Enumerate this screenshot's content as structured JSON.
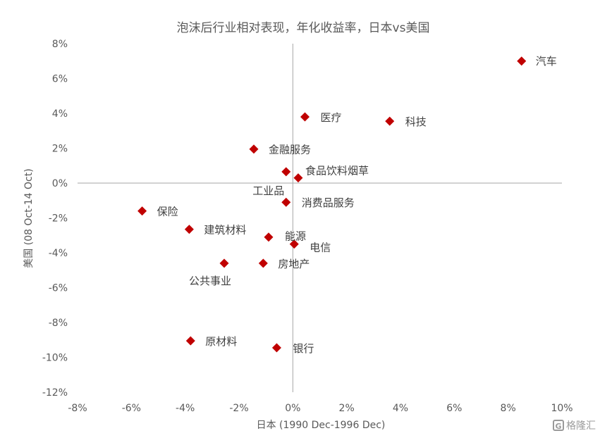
{
  "chart_data": {
    "type": "scatter",
    "title": "泡沫后行业相对表现，年化收益率，日本vs美国",
    "xlabel": "日本 (1990 Dec-1996 Dec)",
    "ylabel": "美国 (08 Oct-14 Oct)",
    "xlim": [
      -8,
      10
    ],
    "ylim": [
      -12,
      8
    ],
    "x_ticks": [
      "-8%",
      "-6%",
      "-4%",
      "-2%",
      "0%",
      "2%",
      "4%",
      "6%",
      "8%",
      "10%"
    ],
    "y_ticks": [
      "8%",
      "6%",
      "4%",
      "2%",
      "0%",
      "-2%",
      "-4%",
      "-6%",
      "-8%",
      "-10%",
      "-12%"
    ],
    "grid": false,
    "points": [
      {
        "label": "汽车",
        "x": 8.5,
        "y": 7.0
      },
      {
        "label": "医疗",
        "x": 0.45,
        "y": 3.8
      },
      {
        "label": "科技",
        "x": 3.6,
        "y": 3.55
      },
      {
        "label": "金融服务",
        "x": -1.45,
        "y": 1.95
      },
      {
        "label": "食品饮料烟草",
        "x": 0.2,
        "y": 0.3
      },
      {
        "label": "工业品",
        "x": -0.25,
        "y": 0.65
      },
      {
        "label": "消费品服务",
        "x": -0.25,
        "y": -1.1
      },
      {
        "label": "保险",
        "x": -5.6,
        "y": -1.6
      },
      {
        "label": "建筑材料",
        "x": -3.85,
        "y": -2.65
      },
      {
        "label": "能源",
        "x": -0.9,
        "y": -3.1
      },
      {
        "label": "电信",
        "x": 0.05,
        "y": -3.5
      },
      {
        "label": "公共事业",
        "x": -2.55,
        "y": -4.6
      },
      {
        "label": "房地产",
        "x": -1.1,
        "y": -4.6
      },
      {
        "label": "原材料",
        "x": -3.8,
        "y": -9.05
      },
      {
        "label": "银行",
        "x": -0.6,
        "y": -9.45
      }
    ]
  },
  "watermark": {
    "icon": "gelonghui-logo-icon",
    "text": "格隆汇"
  }
}
